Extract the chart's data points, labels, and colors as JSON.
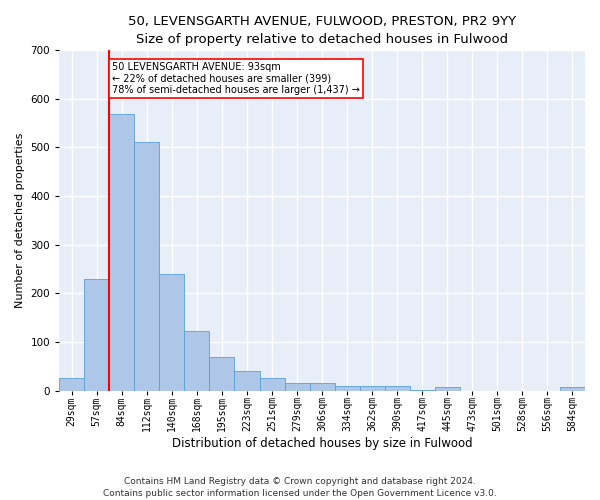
{
  "title1": "50, LEVENSGARTH AVENUE, FULWOOD, PRESTON, PR2 9YY",
  "title2": "Size of property relative to detached houses in Fulwood",
  "xlabel": "Distribution of detached houses by size in Fulwood",
  "ylabel": "Number of detached properties",
  "footnote": "Contains HM Land Registry data © Crown copyright and database right 2024.\nContains public sector information licensed under the Open Government Licence v3.0.",
  "bin_labels": [
    "29sqm",
    "57sqm",
    "84sqm",
    "112sqm",
    "140sqm",
    "168sqm",
    "195sqm",
    "223sqm",
    "251sqm",
    "279sqm",
    "306sqm",
    "334sqm",
    "362sqm",
    "390sqm",
    "417sqm",
    "445sqm",
    "473sqm",
    "501sqm",
    "528sqm",
    "556sqm",
    "584sqm"
  ],
  "bar_values": [
    25,
    230,
    568,
    510,
    240,
    122,
    70,
    40,
    25,
    15,
    15,
    10,
    10,
    10,
    2,
    8,
    0,
    0,
    0,
    0,
    8
  ],
  "bar_color": "#aec6e8",
  "bar_edge_color": "#5a9fd4",
  "annotation_text": "50 LEVENSGARTH AVENUE: 93sqm\n← 22% of detached houses are smaller (399)\n78% of semi-detached houses are larger (1,437) →",
  "annotation_box_color": "white",
  "annotation_box_edge_color": "red",
  "vline_color": "red",
  "ylim": [
    0,
    700
  ],
  "yticks": [
    0,
    100,
    200,
    300,
    400,
    500,
    600,
    700
  ],
  "background_color": "#e8eef8",
  "grid_color": "white",
  "title1_fontsize": 9.5,
  "title2_fontsize": 9,
  "axis_label_fontsize": 8,
  "tick_fontsize": 7,
  "footnote_fontsize": 6.5,
  "vline_x": 1.5
}
